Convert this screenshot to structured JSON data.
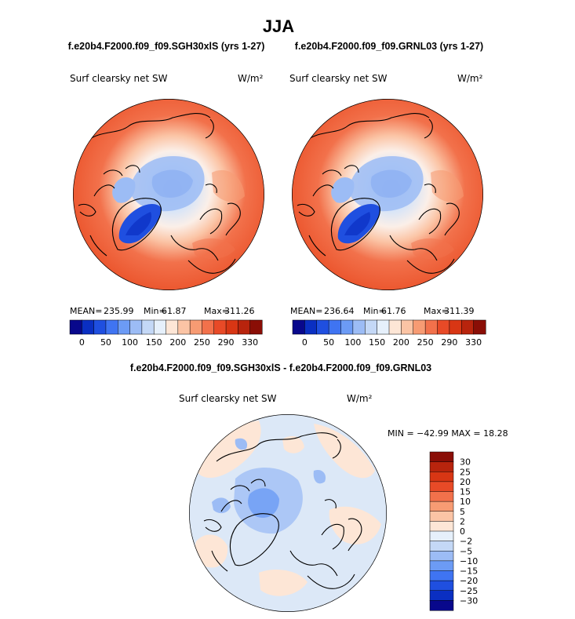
{
  "title": "JJA",
  "colors": {
    "ramp": [
      "#08088c",
      "#0a2fc2",
      "#1f4fe0",
      "#3f74f2",
      "#6c9bf5",
      "#9cbcf5",
      "#c4d8f6",
      "#e6f0fb",
      "#fde6d6",
      "#fbc4a5",
      "#f79b73",
      "#f2714b",
      "#e84a27",
      "#d83614",
      "#b8240d",
      "#8a0e06"
    ],
    "coast": "#000000"
  },
  "chart_data": [
    {
      "type": "heatmap",
      "projection": "north polar stereographic",
      "panel_title": "f.e20b4.F2000.f09_f09.SGH30xlS (yrs 1-27)",
      "variable": "Surf clearsky net SW",
      "units": "W/m²",
      "stats": {
        "mean_label": "MEAN=",
        "mean": "235.99",
        "min_label": "Min=",
        "min": "61.87",
        "max_label": "Max=",
        "max": "311.26"
      },
      "colorbar_ticks": [
        "0",
        "50",
        "100",
        "150",
        "200",
        "250",
        "290",
        "330"
      ]
    },
    {
      "type": "heatmap",
      "projection": "north polar stereographic",
      "panel_title": "f.e20b4.F2000.f09_f09.GRNL03 (yrs 1-27)",
      "variable": "Surf clearsky net SW",
      "units": "W/m²",
      "stats": {
        "mean_label": "MEAN=",
        "mean": "236.64",
        "min_label": "Min=",
        "min": "61.76",
        "max_label": "Max=",
        "max": "311.39"
      },
      "colorbar_ticks": [
        "0",
        "50",
        "100",
        "150",
        "200",
        "250",
        "290",
        "330"
      ]
    },
    {
      "type": "heatmap",
      "projection": "north polar stereographic",
      "panel_title": "f.e20b4.F2000.f09_f09.SGH30xlS - f.e20b4.F2000.f09_f09.GRNL03",
      "variable": "Surf clearsky net SW",
      "units": "W/m²",
      "minmax_text": "MIN = −42.99 MAX =  18.28",
      "colorbar_ticks": [
        "30",
        "25",
        "20",
        "15",
        "10",
        "5",
        "2",
        "0",
        "−2",
        "−5",
        "−10",
        "−15",
        "−20",
        "−25",
        "−30"
      ]
    }
  ]
}
